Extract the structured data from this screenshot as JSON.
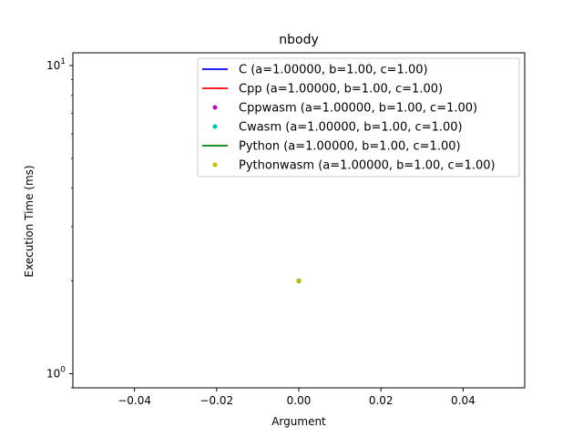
{
  "chart_data": {
    "type": "scatter",
    "title": "nbody",
    "xlabel": "Argument",
    "ylabel": "Execution Time (ms)",
    "xlim": [
      -0.055,
      0.055
    ],
    "ylim": [
      0.9,
      11
    ],
    "yscale": "log",
    "grid": false,
    "legend_position": "top-right",
    "x_ticks": [
      -0.04,
      -0.02,
      0.0,
      0.02,
      0.04
    ],
    "x_tick_labels": [
      "−0.04",
      "−0.02",
      "0.00",
      "0.02",
      "0.04"
    ],
    "y_ticks": [
      1,
      10
    ],
    "y_tick_labels": [
      {
        "base": "10",
        "exp": "0"
      },
      {
        "base": "10",
        "exp": "1"
      }
    ],
    "series": [
      {
        "name": "C (a=1.00000, b=1.00, c=1.00)",
        "style": "line",
        "color": "#0000ff",
        "x": [
          0.0
        ],
        "y": [
          2.0
        ]
      },
      {
        "name": "Cpp (a=1.00000, b=1.00, c=1.00)",
        "style": "line",
        "color": "#ff0000",
        "x": [
          0.0
        ],
        "y": [
          2.0
        ]
      },
      {
        "name": "Cppwasm (a=1.00000, b=1.00, c=1.00)",
        "style": "point",
        "color": "#bf00bf",
        "x": [
          0.0
        ],
        "y": [
          2.0
        ]
      },
      {
        "name": "Cwasm (a=1.00000, b=1.00, c=1.00)",
        "style": "point",
        "color": "#00bfbf",
        "x": [
          0.0
        ],
        "y": [
          2.0
        ]
      },
      {
        "name": "Python (a=1.00000, b=1.00, c=1.00)",
        "style": "line",
        "color": "#008000",
        "x": [
          0.0
        ],
        "y": [
          2.0
        ]
      },
      {
        "name": "Pythonwasm (a=1.00000, b=1.00, c=1.00)",
        "style": "point",
        "color": "#bfbf00",
        "x": [
          0.0
        ],
        "y": [
          2.0
        ]
      }
    ]
  }
}
